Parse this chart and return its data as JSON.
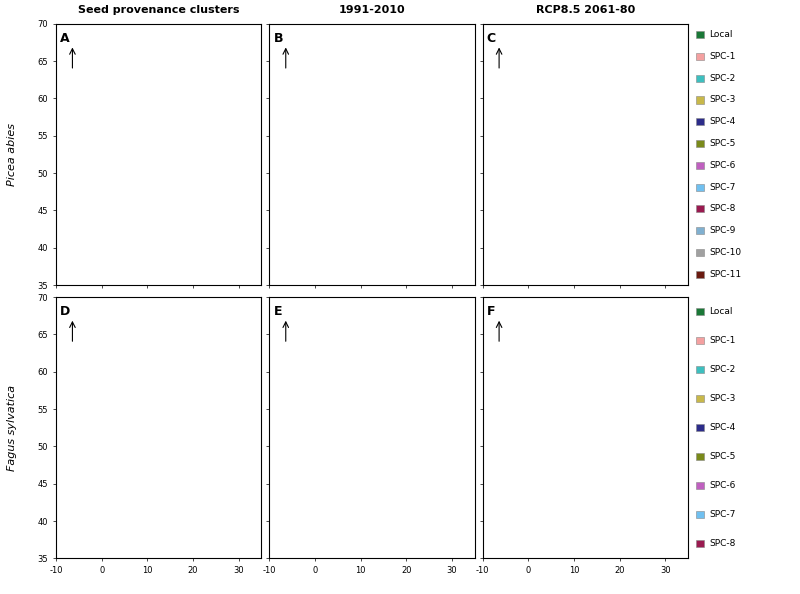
{
  "title_row1": "Seed provenance clusters",
  "title_row2": "1991-2010",
  "title_row3": "RCP8.5 2061-80",
  "ylabel_top": "Picea abies",
  "ylabel_bottom": "Fagus sylvatica",
  "panel_labels": [
    "A",
    "B",
    "C",
    "D",
    "E",
    "F"
  ],
  "xlim": [
    -10,
    35
  ],
  "ylim": [
    35,
    70
  ],
  "xticks": [
    -10,
    0,
    10,
    20,
    30
  ],
  "yticks": [
    35,
    40,
    45,
    50,
    55,
    60,
    65,
    70
  ],
  "legend_top": {
    "labels": [
      "Local",
      "SPC-1",
      "SPC-2",
      "SPC-3",
      "SPC-4",
      "SPC-5",
      "SPC-6",
      "SPC-7",
      "SPC-8",
      "SPC-9",
      "SPC-10",
      "SPC-11"
    ],
    "colors": [
      "#1a7837",
      "#f4a0a0",
      "#3dbfbf",
      "#c8b84a",
      "#2c2c8a",
      "#7a8a1a",
      "#c060c0",
      "#70c0f0",
      "#9a1a50",
      "#80b0d0",
      "#a0a0a0",
      "#6a1a10"
    ]
  },
  "legend_bottom": {
    "labels": [
      "Local",
      "SPC-1",
      "SPC-2",
      "SPC-3",
      "SPC-4",
      "SPC-5",
      "SPC-6",
      "SPC-7",
      "SPC-8"
    ],
    "colors": [
      "#1a7837",
      "#f4a0a0",
      "#3dbfbf",
      "#c8b84a",
      "#2c2c8a",
      "#7a8a1a",
      "#c060c0",
      "#70c0f0",
      "#9a1a50"
    ]
  },
  "background_color": "#ffffff",
  "panel_bg": "#ffffff",
  "border_color": "#000000",
  "map_land_color": "#ffffff",
  "map_border_color": "#000000"
}
